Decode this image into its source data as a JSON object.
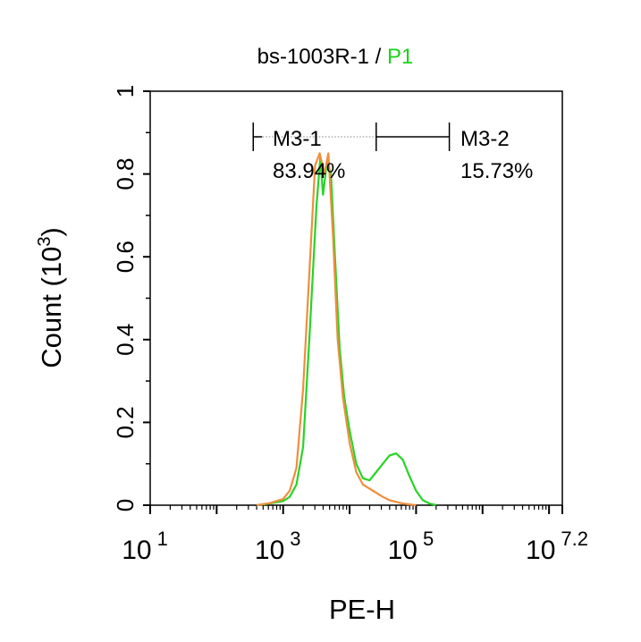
{
  "title": {
    "main": "bs-1003R-1 / ",
    "gate": "P1"
  },
  "colors": {
    "gate": "#19d419",
    "sample": "#27d427",
    "control": "#ef8e3c",
    "axis": "#000000",
    "marker_dots": "#9a9a9a"
  },
  "chart_data": {
    "type": "area",
    "title": "bs-1003R-1 / P1",
    "xlabel": "PE-H",
    "ylabel": {
      "base": "Count  (10",
      "exp": "3",
      "close": ")"
    },
    "xscale": "log",
    "xlim": [
      1,
      7.2
    ],
    "ylim": [
      0,
      1
    ],
    "yticks": [
      {
        "v": 0,
        "label": "0"
      },
      {
        "v": 0.2,
        "label": "0.2"
      },
      {
        "v": 0.4,
        "label": "0.4"
      },
      {
        "v": 0.6,
        "label": "0.6"
      },
      {
        "v": 0.8,
        "label": "0.8"
      },
      {
        "v": 1,
        "label": "1"
      }
    ],
    "xticks": [
      {
        "v": 1,
        "base": "10",
        "exp": "1"
      },
      {
        "v": 3,
        "base": "10",
        "exp": "3"
      },
      {
        "v": 5,
        "base": "10",
        "exp": "5"
      },
      {
        "v": 7.2,
        "base": "10",
        "exp": "7.2"
      }
    ],
    "markers": [
      {
        "name": "M3-1",
        "percent": "83.94%",
        "x_start": 2.55,
        "x_end": 4.4
      },
      {
        "name": "M3-2",
        "percent": "15.73%",
        "x_start": 4.4,
        "x_end": 5.5
      }
    ],
    "series": [
      {
        "role": "sample",
        "points": [
          [
            2.6,
            0
          ],
          [
            2.8,
            0.004
          ],
          [
            3.0,
            0.01
          ],
          [
            3.1,
            0.02
          ],
          [
            3.2,
            0.05
          ],
          [
            3.3,
            0.14
          ],
          [
            3.4,
            0.42
          ],
          [
            3.5,
            0.72
          ],
          [
            3.56,
            0.84
          ],
          [
            3.6,
            0.75
          ],
          [
            3.66,
            0.83
          ],
          [
            3.72,
            0.8
          ],
          [
            3.78,
            0.6
          ],
          [
            3.85,
            0.38
          ],
          [
            3.92,
            0.26
          ],
          [
            4.0,
            0.18
          ],
          [
            4.1,
            0.1
          ],
          [
            4.2,
            0.065
          ],
          [
            4.3,
            0.06
          ],
          [
            4.4,
            0.08
          ],
          [
            4.5,
            0.1
          ],
          [
            4.6,
            0.12
          ],
          [
            4.7,
            0.125
          ],
          [
            4.8,
            0.11
          ],
          [
            4.9,
            0.07
          ],
          [
            5.0,
            0.035
          ],
          [
            5.1,
            0.012
          ],
          [
            5.2,
            0.004
          ],
          [
            5.3,
            0
          ]
        ]
      },
      {
        "role": "control",
        "points": [
          [
            2.6,
            0
          ],
          [
            2.8,
            0.005
          ],
          [
            3.0,
            0.015
          ],
          [
            3.1,
            0.035
          ],
          [
            3.2,
            0.09
          ],
          [
            3.3,
            0.28
          ],
          [
            3.4,
            0.58
          ],
          [
            3.48,
            0.82
          ],
          [
            3.55,
            0.85
          ],
          [
            3.62,
            0.8
          ],
          [
            3.68,
            0.85
          ],
          [
            3.75,
            0.65
          ],
          [
            3.82,
            0.4
          ],
          [
            3.9,
            0.26
          ],
          [
            4.0,
            0.15
          ],
          [
            4.1,
            0.08
          ],
          [
            4.2,
            0.05
          ],
          [
            4.3,
            0.04
          ],
          [
            4.4,
            0.03
          ],
          [
            4.5,
            0.02
          ],
          [
            4.6,
            0.012
          ],
          [
            4.7,
            0.008
          ],
          [
            4.8,
            0.004
          ],
          [
            4.9,
            0.002
          ],
          [
            5.0,
            0
          ]
        ]
      }
    ]
  }
}
